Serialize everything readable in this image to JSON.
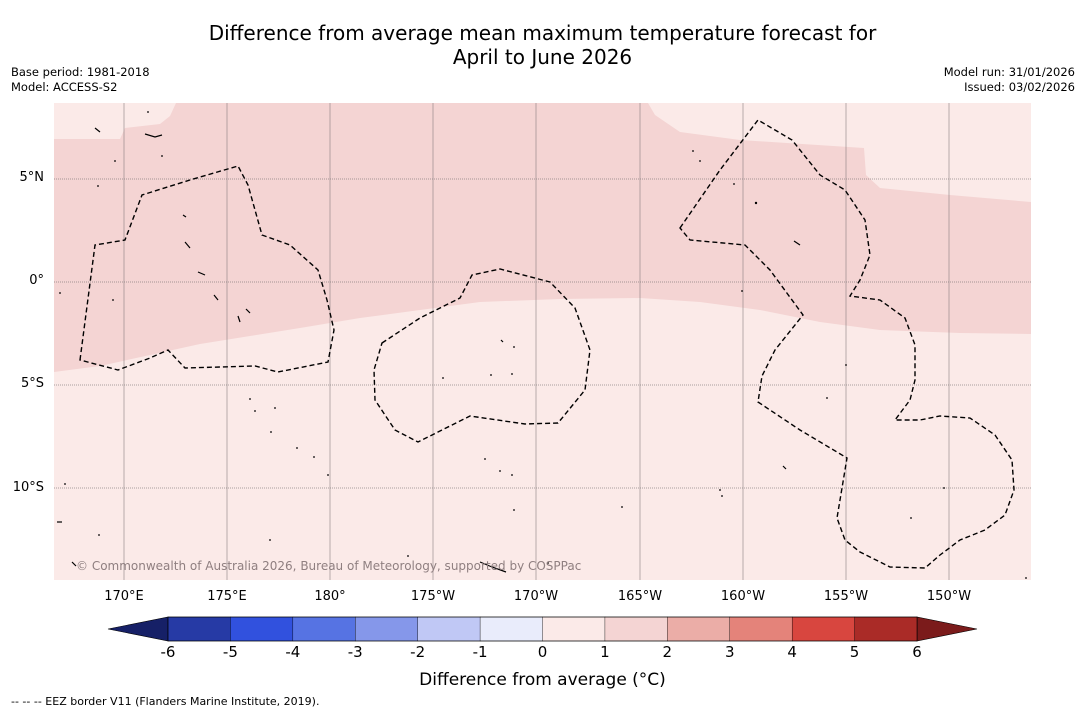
{
  "title": {
    "line1": "Difference from average mean maximum temperature forecast for",
    "line2": "April to June 2026"
  },
  "meta_left": {
    "base_period": "Base period: 1981-2018",
    "model": "Model: ACCESS-S2"
  },
  "meta_right": {
    "model_run": "Model run: 31/01/2026",
    "issued": "Issued: 03/02/2026"
  },
  "lat_labels": [
    "5°N",
    "0°",
    "5°S",
    "10°S"
  ],
  "lon_labels": [
    "170°E",
    "175°E",
    "180°",
    "175°W",
    "170°W",
    "165°W",
    "160°W",
    "155°W",
    "150°W"
  ],
  "copyright": "© Commonwealth of Australia 2026, Bureau of Meteorology, supported by COSPPac",
  "colorbar": {
    "ticks": [
      "-6",
      "-5",
      "-4",
      "-3",
      "-2",
      "-1",
      "0",
      "1",
      "2",
      "3",
      "4",
      "5",
      "6"
    ],
    "title": "Difference from average (°C)",
    "colors": [
      "#263aa5",
      "#3151de",
      "#5673e3",
      "#8597ea",
      "#c0c8f5",
      "#e9ecfb",
      "#fbeae8",
      "#f4d4d3",
      "#ebada7",
      "#e4837a",
      "#d8463f",
      "#aa2b27"
    ],
    "low_extend": "#162067",
    "high_extend": "#7b1b1b"
  },
  "map": {
    "region": "Central Pacific (Kiribati / Phoenix & Line Islands area)",
    "fill_low": "#fbeae8",
    "fill_mid": "#f4d4d3"
  },
  "legend_text": "--  --  -- EEZ border V11 (Flanders Marine Institute, 2019)."
}
